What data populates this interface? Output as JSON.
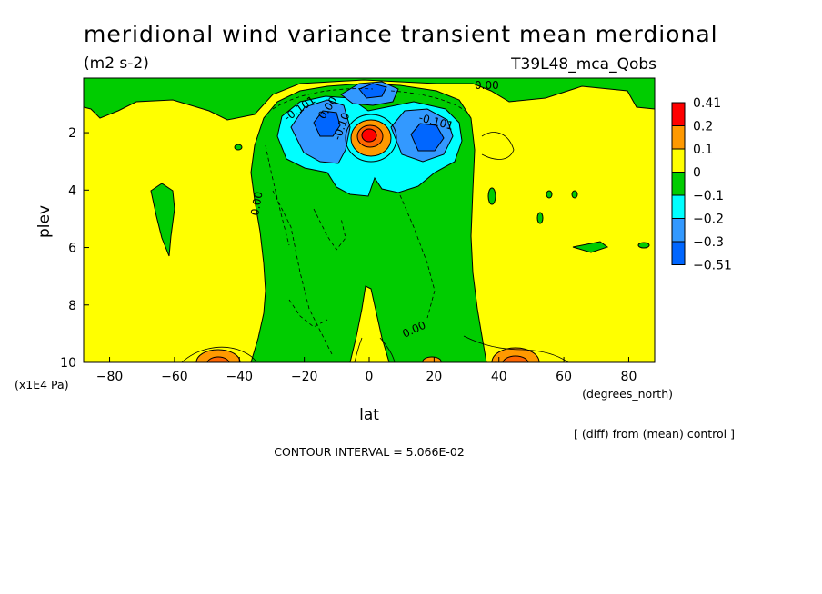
{
  "title": "meridional wind variance transient mean merdional",
  "units": "(m2 s-2)",
  "run_label": "T39L48_mca_Qobs",
  "diff_note": "[ (diff) from (mean) control ]",
  "contour_interval": "CONTOUR INTERVAL = 5.066E-02",
  "colors": {
    "yellow": "#ffff00",
    "green": "#00cc00",
    "cyan": "#00ffff",
    "lightblue": "#3399ff",
    "blue": "#0066ff",
    "orange": "#ff9900",
    "dark_orange": "#ff6600",
    "red": "#ff0000"
  },
  "chart_data": {
    "type": "heatmap",
    "xlabel": "lat",
    "xunits": "(degrees_north)",
    "ylabel": "plev",
    "yunits": "(x1E4 Pa)",
    "xlim": [
      -88,
      88
    ],
    "ylim": [
      10,
      0.1
    ],
    "x_ticks": [
      -80,
      -60,
      -40,
      -20,
      0,
      20,
      40,
      60,
      80
    ],
    "x_tick_labels": [
      "−80",
      "−60",
      "−40",
      "−20",
      "0",
      "20",
      "40",
      "60",
      "80"
    ],
    "y_ticks": [
      2,
      4,
      6,
      8,
      10
    ],
    "y_tick_labels": [
      "2",
      "4",
      "6",
      "8",
      "10"
    ],
    "colorbar": {
      "labels": [
        "0.41",
        "0.2",
        "0.1",
        "0",
        "−0.1",
        "−0.2",
        "−0.3",
        "−0.51"
      ],
      "colors": [
        "#ff0000",
        "#ff9900",
        "#ffff00",
        "#00cc00",
        "#00ffff",
        "#3399ff",
        "#0066ff"
      ]
    },
    "contour_labels": [
      "0.00",
      "0.00",
      "0.00",
      "-0.10",
      "-0.101",
      "-0.101",
      "0.00"
    ]
  }
}
